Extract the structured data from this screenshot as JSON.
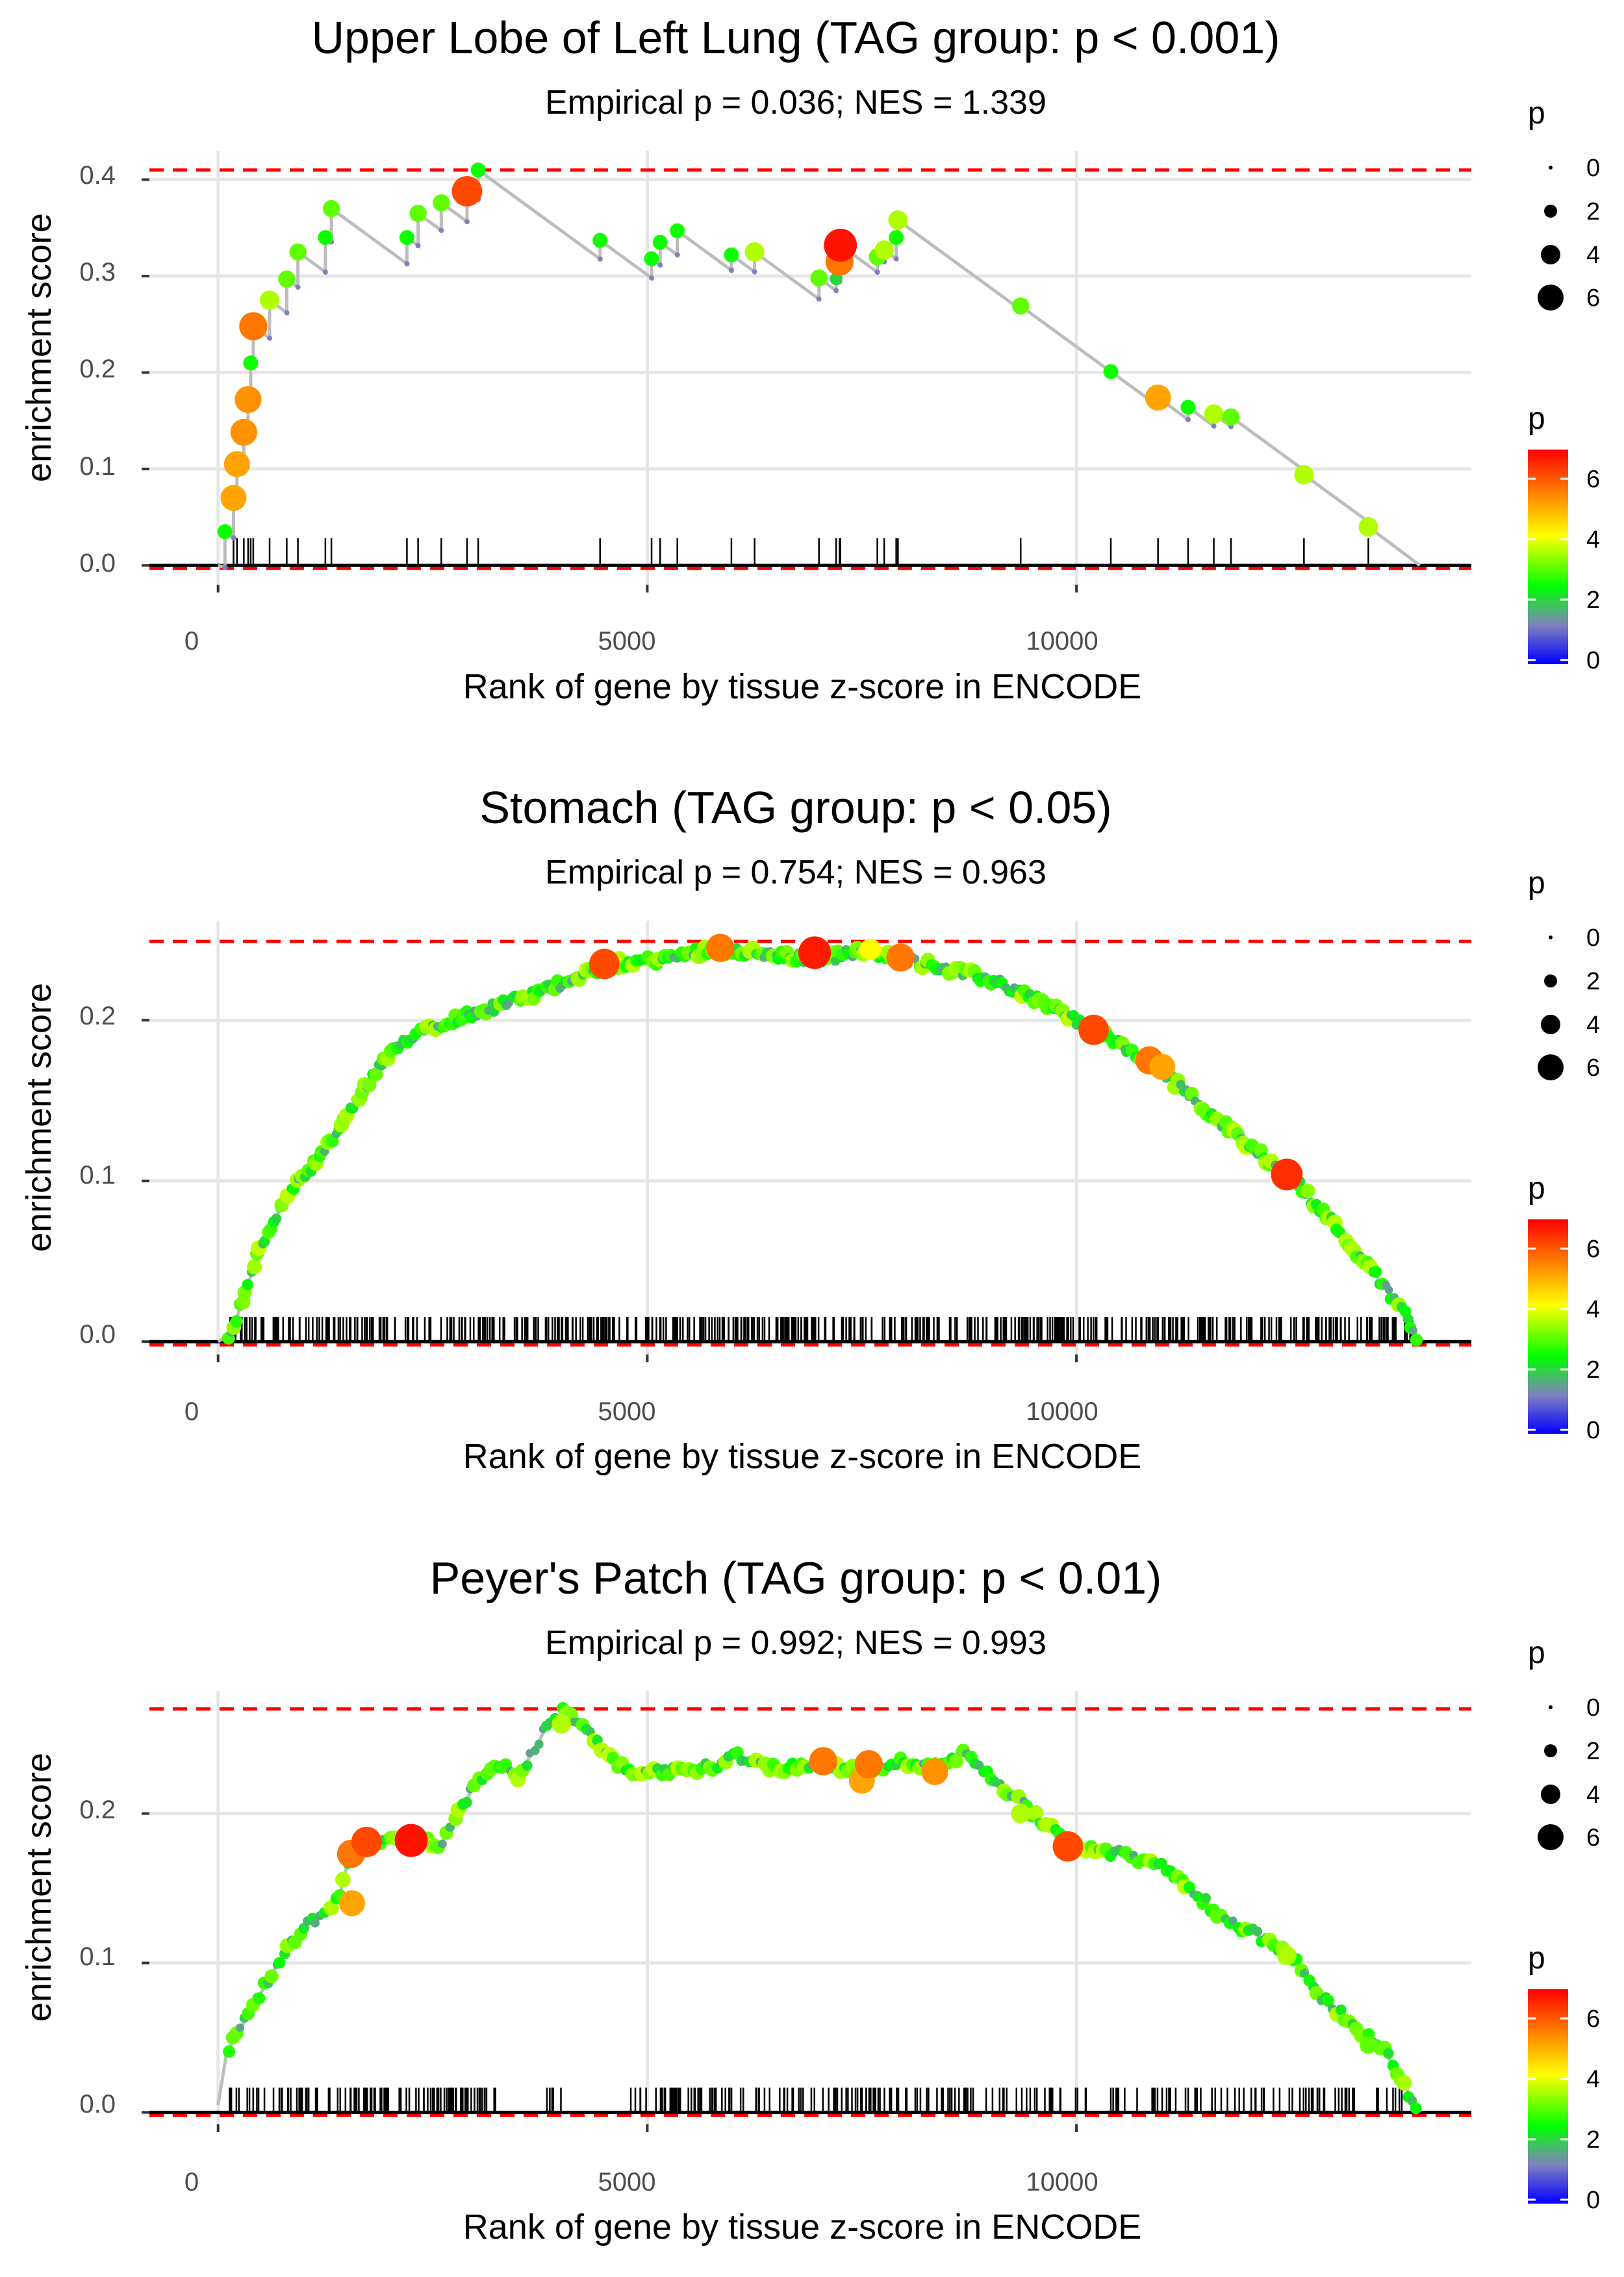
{
  "colors": {
    "panel_background": "#ffffff",
    "grid": "#e6e6e6",
    "es_line": "#bdbdbd",
    "dashed_reference": "#ff0000",
    "gradient": [
      "#0000ff",
      "#8080c0",
      "#00ff00",
      "#ffff00",
      "#ff8000",
      "#ff0000"
    ]
  },
  "legend": {
    "size_title": "p",
    "size_labels": [
      "0",
      "2",
      "4",
      "6"
    ],
    "size_values": [
      0,
      2,
      4,
      6
    ],
    "color_title": "p",
    "color_labels": [
      "0",
      "2",
      "4",
      "6"
    ],
    "color_values": [
      0,
      2,
      4,
      6
    ],
    "color_range": [
      0,
      6.8
    ]
  },
  "chart_data": [
    {
      "type": "scatter",
      "title": "Upper Lobe of Left Lung (TAG group: p < 0.001)",
      "subtitle": "Empirical p = 0.036; NES = 1.339",
      "xlabel": "Rank of gene by tissue z-score in ENCODE",
      "ylabel": "enrichment score",
      "xlim": [
        -800,
        14600
      ],
      "ylim": [
        -0.02,
        0.43
      ],
      "xticks": [
        0,
        5000,
        10000
      ],
      "xtick_labels": [
        "0",
        "5000",
        "10000"
      ],
      "yticks": [
        0,
        0.1,
        0.2,
        0.3,
        0.4
      ],
      "ytick_labels": [
        "0.0",
        "0.1",
        "0.2",
        "0.3",
        "0.4"
      ],
      "max_es": 0.41,
      "min_es": -0.003,
      "end_rank": 14000,
      "hits": [
        {
          "x": 80,
          "y": 0.035,
          "p": 2.5
        },
        {
          "x": 180,
          "y": 0.07,
          "p": 5.0
        },
        {
          "x": 220,
          "y": 0.105,
          "p": 5.0
        },
        {
          "x": 300,
          "y": 0.138,
          "p": 5.2
        },
        {
          "x": 350,
          "y": 0.172,
          "p": 5.2
        },
        {
          "x": 380,
          "y": 0.21,
          "p": 2.5
        },
        {
          "x": 410,
          "y": 0.248,
          "p": 5.5
        },
        {
          "x": 600,
          "y": 0.275,
          "p": 3.5
        },
        {
          "x": 800,
          "y": 0.297,
          "p": 3.0
        },
        {
          "x": 930,
          "y": 0.325,
          "p": 3.0
        },
        {
          "x": 1250,
          "y": 0.34,
          "p": 2.5
        },
        {
          "x": 1320,
          "y": 0.37,
          "p": 3.0
        },
        {
          "x": 2200,
          "y": 0.34,
          "p": 2.5
        },
        {
          "x": 2330,
          "y": 0.365,
          "p": 3.0
        },
        {
          "x": 2600,
          "y": 0.376,
          "p": 3.0
        },
        {
          "x": 2900,
          "y": 0.388,
          "p": 6.0
        },
        {
          "x": 3030,
          "y": 0.41,
          "p": 2.5
        },
        {
          "x": 4450,
          "y": 0.337,
          "p": 2.5
        },
        {
          "x": 5050,
          "y": 0.318,
          "p": 2.5
        },
        {
          "x": 5150,
          "y": 0.335,
          "p": 2.5
        },
        {
          "x": 5350,
          "y": 0.347,
          "p": 2.5
        },
        {
          "x": 5980,
          "y": 0.322,
          "p": 2.5
        },
        {
          "x": 6250,
          "y": 0.325,
          "p": 3.5
        },
        {
          "x": 7000,
          "y": 0.298,
          "p": 3.0
        },
        {
          "x": 7200,
          "y": 0.297,
          "p": 2.0
        },
        {
          "x": 7240,
          "y": 0.315,
          "p": 5.5
        },
        {
          "x": 7250,
          "y": 0.332,
          "p": 6.6
        },
        {
          "x": 7680,
          "y": 0.32,
          "p": 3.0
        },
        {
          "x": 7760,
          "y": 0.327,
          "p": 3.5
        },
        {
          "x": 7900,
          "y": 0.34,
          "p": 2.5
        },
        {
          "x": 7920,
          "y": 0.358,
          "p": 3.5
        },
        {
          "x": 9350,
          "y": 0.269,
          "p": 3.0
        },
        {
          "x": 10400,
          "y": 0.201,
          "p": 2.5
        },
        {
          "x": 10950,
          "y": 0.174,
          "p": 5.0
        },
        {
          "x": 11300,
          "y": 0.164,
          "p": 2.5
        },
        {
          "x": 11600,
          "y": 0.157,
          "p": 3.5
        },
        {
          "x": 11800,
          "y": 0.154,
          "p": 3.0
        },
        {
          "x": 12650,
          "y": 0.094,
          "p": 3.5
        },
        {
          "x": 13400,
          "y": 0.04,
          "p": 3.5
        }
      ],
      "rug_ranks": [
        80,
        180,
        220,
        300,
        350,
        380,
        410,
        600,
        800,
        930,
        1250,
        1320,
        2200,
        2330,
        2600,
        2900,
        3030,
        4450,
        5050,
        5150,
        5350,
        5980,
        6250,
        7000,
        7200,
        7240,
        7250,
        7680,
        7760,
        7900,
        7920,
        9350,
        10400,
        10950,
        11300,
        11600,
        11800,
        12650,
        13400
      ]
    },
    {
      "type": "scatter",
      "title": "Stomach (TAG group: p < 0.05)",
      "subtitle": "Empirical p = 0.754; NES = 0.963",
      "xlabel": "Rank of gene by tissue z-score in ENCODE",
      "ylabel": "enrichment score",
      "xlim": [
        -800,
        14600
      ],
      "ylim": [
        -0.008,
        0.262
      ],
      "xticks": [
        0,
        5000,
        10000
      ],
      "xtick_labels": [
        "0",
        "5000",
        "10000"
      ],
      "yticks": [
        0,
        0.1,
        0.2
      ],
      "ytick_labels": [
        "0.0",
        "0.1",
        "0.2"
      ],
      "max_es": 0.249,
      "min_es": -0.002,
      "end_rank": 14000,
      "curve": [
        [
          0,
          0
        ],
        [
          150,
          0.005
        ],
        [
          250,
          0.02
        ],
        [
          500,
          0.06
        ],
        [
          800,
          0.09
        ],
        [
          1200,
          0.115
        ],
        [
          1500,
          0.14
        ],
        [
          1800,
          0.165
        ],
        [
          2000,
          0.178
        ],
        [
          2300,
          0.193
        ],
        [
          2700,
          0.2
        ],
        [
          3200,
          0.208
        ],
        [
          3700,
          0.216
        ],
        [
          4200,
          0.228
        ],
        [
          4600,
          0.235
        ],
        [
          5200,
          0.238
        ],
        [
          5800,
          0.245
        ],
        [
          6500,
          0.24
        ],
        [
          7000,
          0.238
        ],
        [
          7500,
          0.243
        ],
        [
          8000,
          0.238
        ],
        [
          8500,
          0.232
        ],
        [
          9000,
          0.225
        ],
        [
          9500,
          0.214
        ],
        [
          10000,
          0.2
        ],
        [
          10500,
          0.185
        ],
        [
          11000,
          0.168
        ],
        [
          11500,
          0.145
        ],
        [
          12000,
          0.122
        ],
        [
          12500,
          0.103
        ],
        [
          13000,
          0.073
        ],
        [
          13500,
          0.04
        ],
        [
          13800,
          0.02
        ],
        [
          14000,
          0.0
        ]
      ],
      "highlights": [
        {
          "x": 4500,
          "y": 0.235,
          "p": 6.0
        },
        {
          "x": 5850,
          "y": 0.245,
          "p": 5.5
        },
        {
          "x": 6950,
          "y": 0.242,
          "p": 6.5
        },
        {
          "x": 7600,
          "y": 0.244,
          "p": 4.0
        },
        {
          "x": 7950,
          "y": 0.239,
          "p": 5.5
        },
        {
          "x": 10200,
          "y": 0.194,
          "p": 6.0
        },
        {
          "x": 10850,
          "y": 0.175,
          "p": 5.5
        },
        {
          "x": 11000,
          "y": 0.171,
          "p": 5.0
        },
        {
          "x": 12450,
          "y": 0.104,
          "p": 6.3
        }
      ],
      "rug_range": [
        80,
        13950
      ],
      "rug_count": 520
    },
    {
      "type": "scatter",
      "title": "Peyer's Patch (TAG group: p < 0.01)",
      "subtitle": "Empirical p = 0.992; NES = 0.993",
      "xlabel": "Rank of gene by tissue z-score in ENCODE",
      "ylabel": "enrichment score",
      "xlim": [
        -800,
        14600
      ],
      "ylim": [
        -0.008,
        0.282
      ],
      "xticks": [
        0,
        5000,
        10000
      ],
      "xtick_labels": [
        "0",
        "5000",
        "10000"
      ],
      "yticks": [
        0,
        0.1,
        0.2
      ],
      "ytick_labels": [
        "0.0",
        "0.1",
        "0.2"
      ],
      "max_es": 0.27,
      "min_es": -0.002,
      "end_rank": 14000,
      "curve": [
        [
          0,
          0.005
        ],
        [
          100,
          0.04
        ],
        [
          400,
          0.07
        ],
        [
          700,
          0.1
        ],
        [
          1000,
          0.125
        ],
        [
          1200,
          0.13
        ],
        [
          1400,
          0.142
        ],
        [
          1500,
          0.165
        ],
        [
          1700,
          0.18
        ],
        [
          2000,
          0.183
        ],
        [
          2300,
          0.183
        ],
        [
          2600,
          0.18
        ],
        [
          2800,
          0.2
        ],
        [
          3000,
          0.22
        ],
        [
          3300,
          0.232
        ],
        [
          3500,
          0.225
        ],
        [
          3800,
          0.255
        ],
        [
          4050,
          0.27
        ],
        [
          4400,
          0.248
        ],
        [
          4800,
          0.226
        ],
        [
          5300,
          0.228
        ],
        [
          5800,
          0.232
        ],
        [
          6000,
          0.24
        ],
        [
          6500,
          0.23
        ],
        [
          7000,
          0.234
        ],
        [
          7500,
          0.228
        ],
        [
          8000,
          0.235
        ],
        [
          8300,
          0.23
        ],
        [
          8700,
          0.24
        ],
        [
          9000,
          0.225
        ],
        [
          9300,
          0.21
        ],
        [
          9600,
          0.195
        ],
        [
          10000,
          0.178
        ],
        [
          10500,
          0.173
        ],
        [
          11000,
          0.165
        ],
        [
          11300,
          0.152
        ],
        [
          11700,
          0.13
        ],
        [
          12000,
          0.122
        ],
        [
          12500,
          0.105
        ],
        [
          12800,
          0.08
        ],
        [
          13200,
          0.06
        ],
        [
          13600,
          0.04
        ],
        [
          13800,
          0.02
        ],
        [
          14000,
          0.0
        ]
      ],
      "highlights": [
        {
          "x": 1550,
          "y": 0.173,
          "p": 5.5
        },
        {
          "x": 1560,
          "y": 0.14,
          "p": 5.0
        },
        {
          "x": 1730,
          "y": 0.181,
          "p": 6.0
        },
        {
          "x": 2250,
          "y": 0.182,
          "p": 6.6
        },
        {
          "x": 4000,
          "y": 0.26,
          "p": 3.5
        },
        {
          "x": 7050,
          "y": 0.235,
          "p": 5.5
        },
        {
          "x": 7500,
          "y": 0.222,
          "p": 5.0
        },
        {
          "x": 7580,
          "y": 0.233,
          "p": 5.5
        },
        {
          "x": 8350,
          "y": 0.228,
          "p": 5.2
        },
        {
          "x": 9350,
          "y": 0.2,
          "p": 3.5
        },
        {
          "x": 9900,
          "y": 0.178,
          "p": 6.0
        },
        {
          "x": 12450,
          "y": 0.105,
          "p": 3.5
        },
        {
          "x": 13400,
          "y": 0.045,
          "p": 3.0
        }
      ],
      "rug_segments": [
        [
          80,
          3300,
          110
        ],
        [
          3700,
          4100,
          6
        ],
        [
          4800,
          9200,
          120
        ],
        [
          9300,
          13800,
          85
        ]
      ]
    }
  ]
}
